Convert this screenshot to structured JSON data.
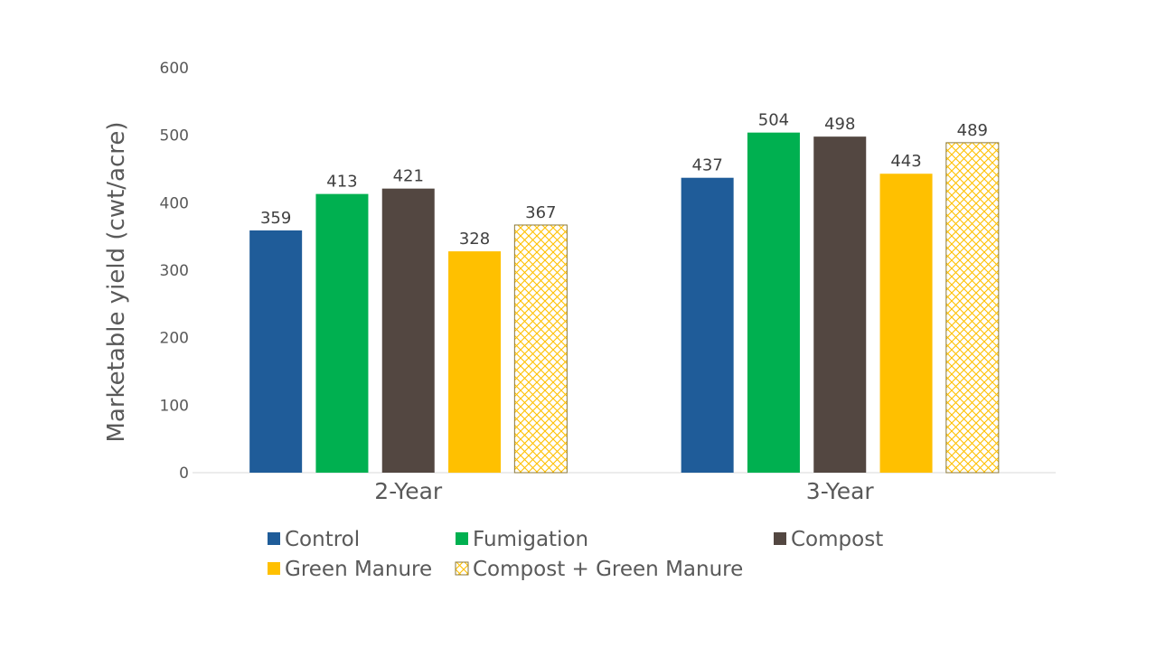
{
  "chart_data": {
    "type": "bar",
    "categories": [
      "2-Year",
      "3-Year"
    ],
    "series": [
      {
        "name": "Control",
        "values": [
          359,
          437
        ],
        "color": "#1f5c99",
        "pattern": "solid"
      },
      {
        "name": "Fumigation",
        "values": [
          413,
          504
        ],
        "color": "#00b050",
        "pattern": "solid"
      },
      {
        "name": "Compost",
        "values": [
          421,
          498
        ],
        "color": "#534741",
        "pattern": "solid"
      },
      {
        "name": "Green Manure",
        "values": [
          328,
          443
        ],
        "color": "#ffc000",
        "pattern": "solid"
      },
      {
        "name": "Compost + Green Manure",
        "values": [
          367,
          489
        ],
        "color": "#ffc000",
        "pattern": "crosshatch"
      }
    ],
    "title": "",
    "xlabel": "",
    "ylabel": "Marketable yield (cwt/acre)",
    "ylim": [
      0,
      600
    ],
    "yticks": [
      0,
      100,
      200,
      300,
      400,
      500,
      600
    ],
    "grid": false,
    "data_labels": true,
    "legend_position": "bottom"
  }
}
